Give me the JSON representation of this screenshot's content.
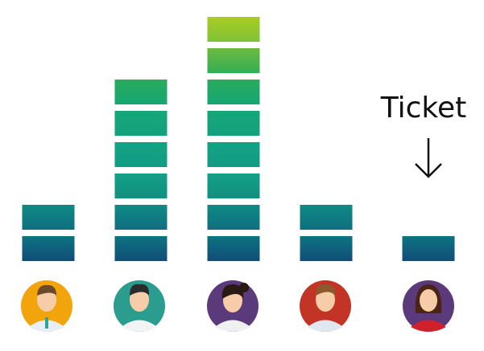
{
  "chart_data": {
    "type": "bar",
    "values": [
      2,
      6,
      8,
      2,
      1
    ],
    "annotation": "Ticket"
  }
}
